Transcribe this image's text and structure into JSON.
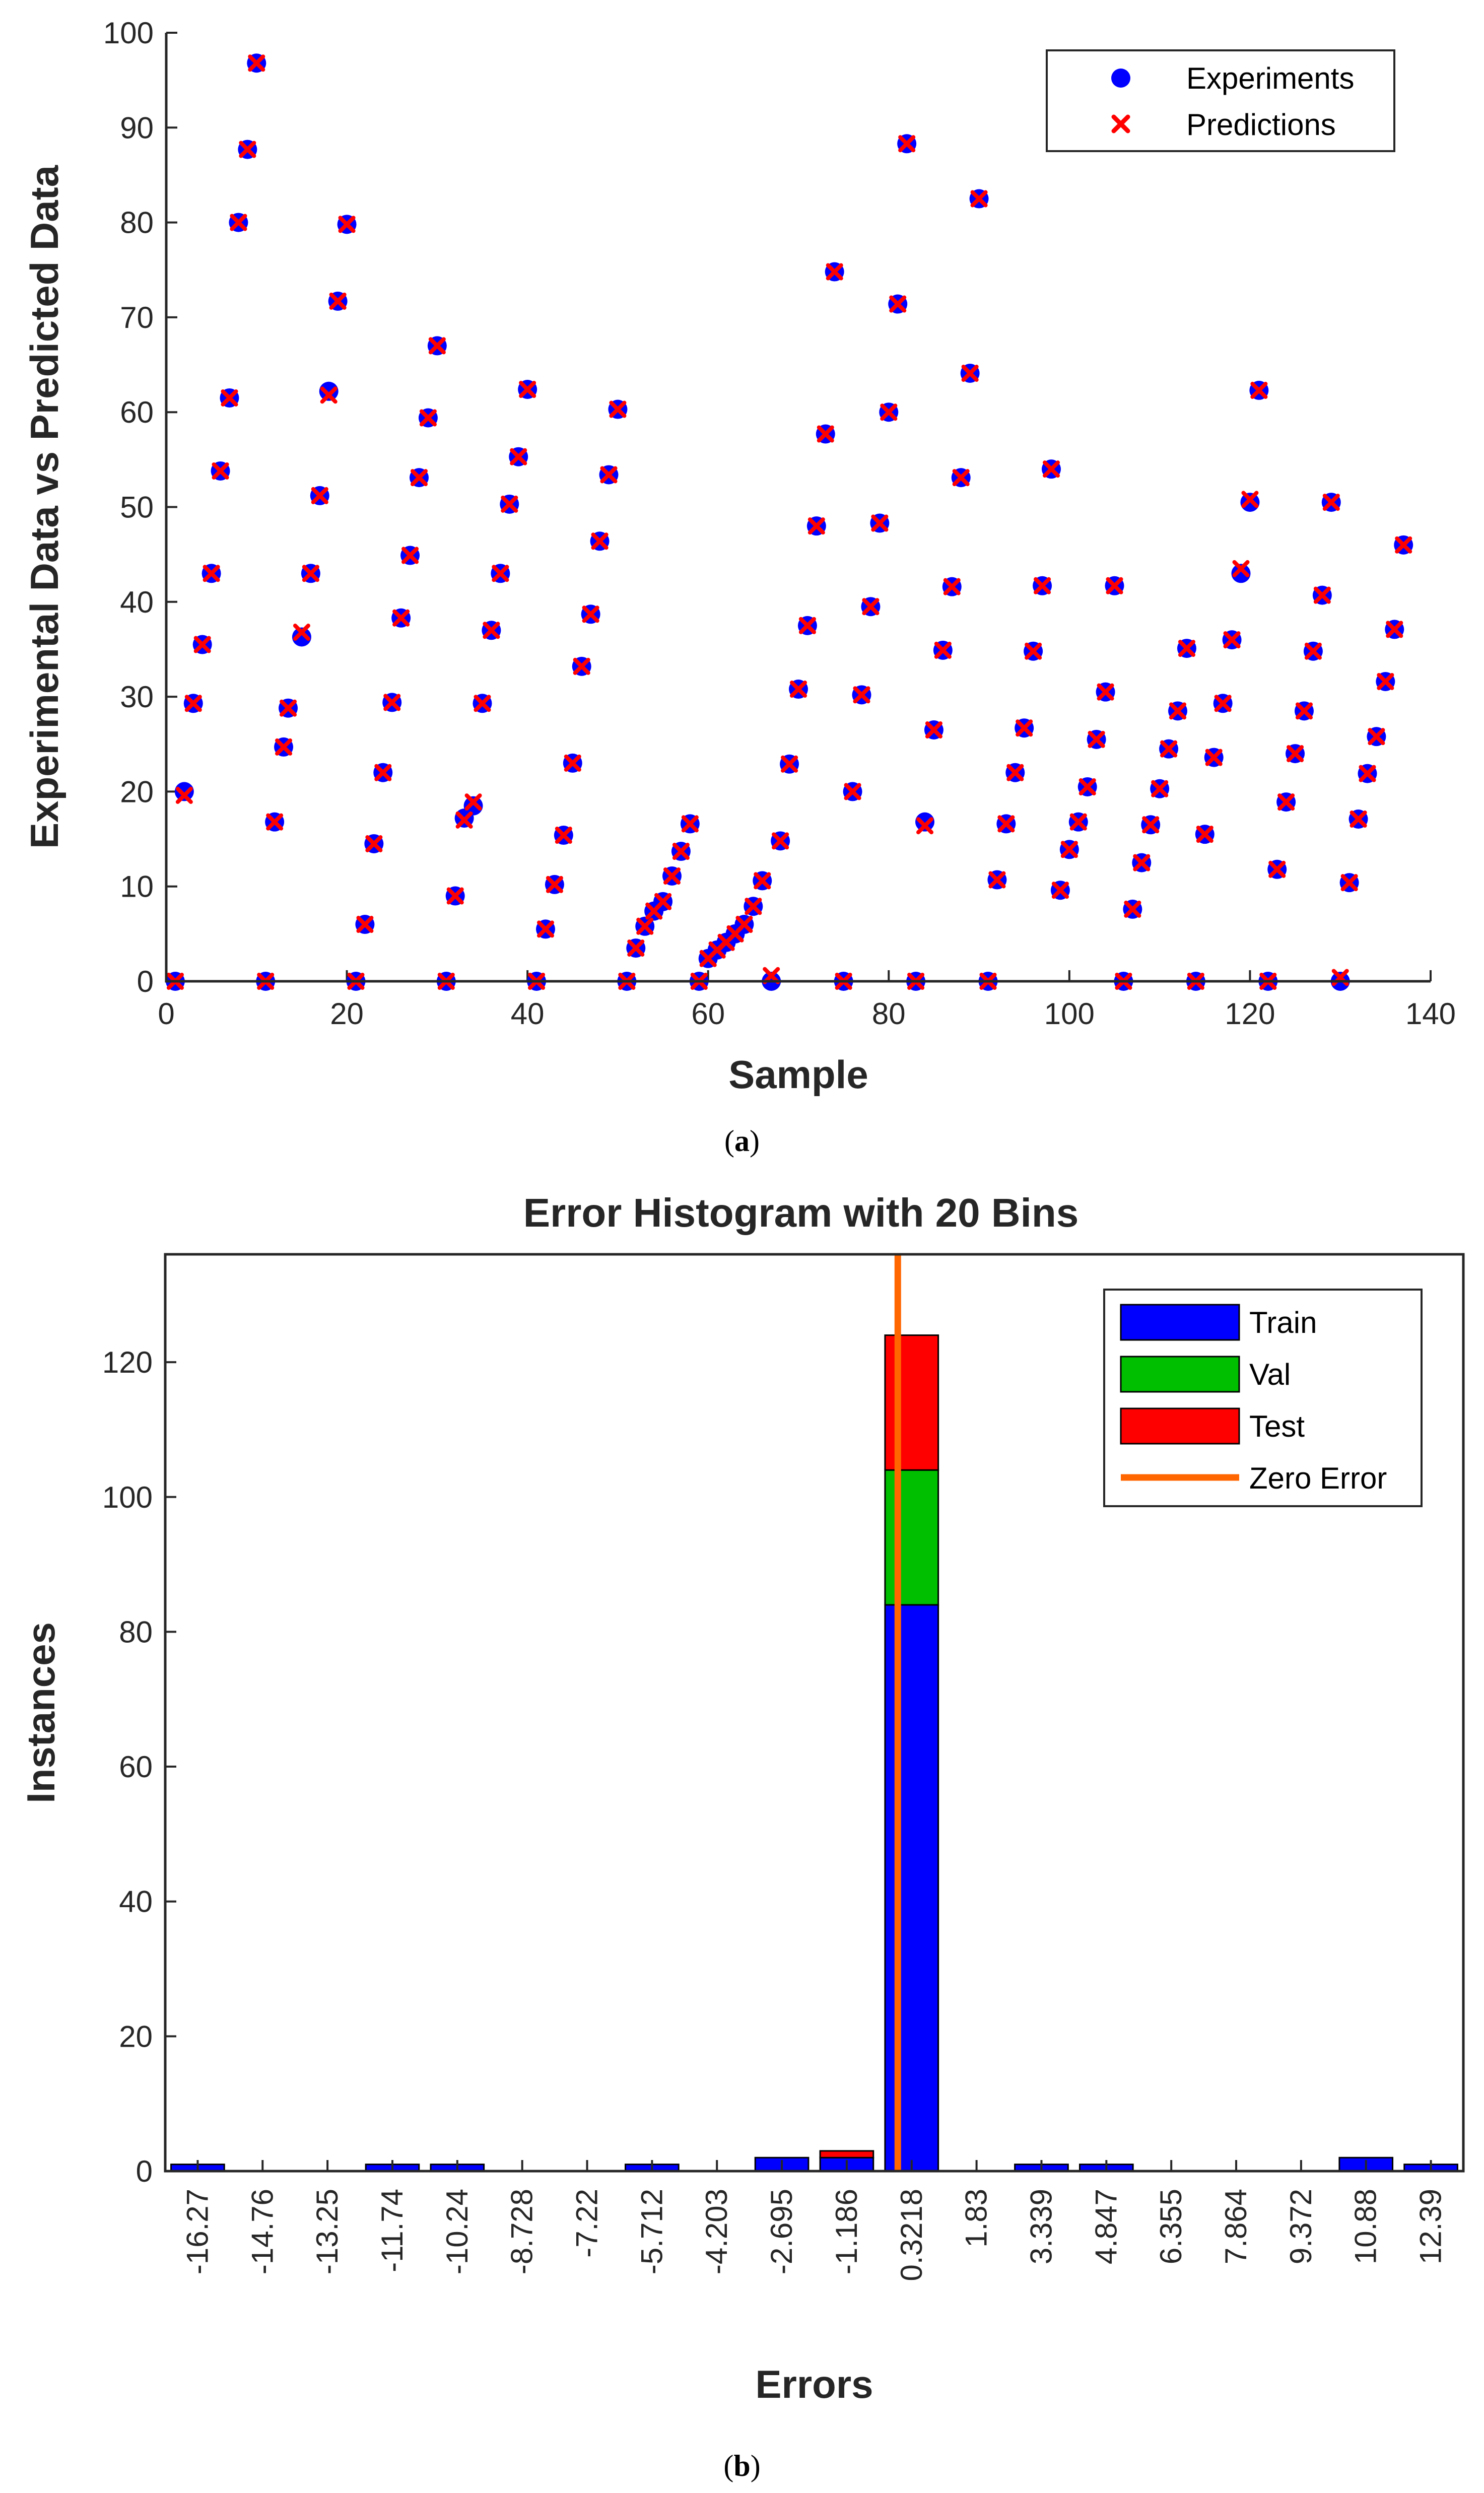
{
  "captions": {
    "a_open": "(",
    "a_letter": "a",
    "a_close": ")",
    "b_open": "(",
    "b_letter": "b",
    "b_close": ")"
  },
  "chart_data": [
    {
      "type": "scatter",
      "title": "",
      "xlabel": "Sample",
      "ylabel": "Experimental Data vs Predicted Data",
      "xlim": [
        0,
        140
      ],
      "ylim": [
        0,
        100
      ],
      "xticks": [
        0,
        20,
        40,
        60,
        80,
        100,
        120,
        140
      ],
      "yticks": [
        0,
        10,
        20,
        30,
        40,
        50,
        60,
        70,
        80,
        90,
        100
      ],
      "grid": false,
      "legend_position": "top-right",
      "colors": {
        "experiments": "#0000ff",
        "predictions": "#ff0000"
      },
      "series": [
        {
          "name": "Experiments",
          "marker": "circle",
          "x": [
            1,
            2,
            3,
            4,
            5,
            6,
            7,
            8,
            9,
            10,
            11,
            12,
            13,
            13.5,
            15,
            16,
            17,
            18,
            19,
            20,
            21,
            22,
            23,
            24,
            25,
            26,
            27,
            28,
            29,
            30,
            31,
            32,
            33,
            34,
            35,
            36,
            37,
            38,
            39,
            40,
            41,
            42,
            43,
            44,
            45,
            46,
            47,
            48,
            49,
            50,
            51,
            52,
            53,
            54,
            55,
            56,
            57,
            58,
            59,
            60,
            61,
            62,
            63,
            64,
            65,
            66,
            67,
            68,
            69,
            70,
            71,
            72,
            73,
            74,
            75,
            76,
            77,
            78,
            79,
            80,
            81,
            82,
            83,
            84,
            85,
            86,
            87,
            88,
            89,
            90,
            91,
            92,
            93,
            94,
            95,
            96,
            97,
            98,
            99,
            100,
            101,
            102,
            103,
            104,
            105,
            106,
            107,
            108,
            109,
            110,
            111,
            112,
            113,
            114,
            115,
            116,
            117,
            118,
            119,
            120,
            121,
            122,
            123,
            124,
            125,
            126,
            127,
            128,
            129,
            130,
            131,
            132,
            133,
            134,
            135,
            136,
            137
          ],
          "y": [
            0,
            20,
            29.3,
            35.5,
            43,
            53.8,
            61.5,
            80,
            87.7,
            96.8,
            0,
            16.8,
            24.7,
            28.8,
            36.3,
            43,
            51.2,
            62.2,
            71.7,
            79.8,
            0,
            6,
            14.5,
            22,
            29.4,
            38.3,
            44.9,
            53.1,
            59.4,
            67,
            0,
            9,
            17.2,
            18.5,
            29.3,
            37,
            43,
            50.3,
            55.3,
            62.4,
            0,
            5.5,
            10.2,
            15.4,
            23,
            33.2,
            38.7,
            46.4,
            53.4,
            60.3,
            0,
            3.5,
            5.8,
            7.4,
            8.4,
            11.1,
            13.7,
            16.6,
            0,
            2.4,
            3.3,
            4.1,
            5,
            6,
            7.9,
            10.6,
            0,
            14.8,
            22.9,
            30.8,
            37.5,
            48,
            57.7,
            74.8,
            0,
            20,
            30.2,
            39.5,
            48.3,
            60,
            71.4,
            88.3,
            0,
            16.8,
            26.5,
            34.9,
            41.6,
            53.1,
            64.1,
            82.5,
            0,
            10.7,
            16.6,
            22,
            26.7,
            34.8,
            41.7,
            54,
            9.6,
            13.9,
            16.8,
            20.5,
            25.5,
            30.5,
            41.7,
            0,
            7.6,
            12.5,
            16.5,
            20.3,
            24.5,
            28.5,
            35.1,
            0,
            15.5,
            23.6,
            29.3,
            36,
            43,
            50.5,
            62.3,
            0,
            11.8,
            18.9,
            24,
            28.5,
            34.8,
            40.7,
            50.5,
            0,
            10.4,
            17.1,
            21.9,
            25.8,
            31.6,
            37.1,
            46
          ]
        },
        {
          "name": "Predictions",
          "marker": "x",
          "x": [
            1,
            2,
            3,
            4,
            5,
            6,
            7,
            8,
            9,
            10,
            11,
            12,
            13,
            13.5,
            15,
            16,
            17,
            18,
            19,
            20,
            21,
            22,
            23,
            24,
            25,
            26,
            27,
            28,
            29,
            30,
            31,
            32,
            33,
            34,
            35,
            36,
            37,
            38,
            39,
            40,
            41,
            42,
            43,
            44,
            45,
            46,
            47,
            48,
            49,
            50,
            51,
            52,
            53,
            54,
            55,
            56,
            57,
            58,
            59,
            60,
            61,
            62,
            63,
            64,
            65,
            66,
            67,
            68,
            69,
            70,
            71,
            72,
            73,
            74,
            75,
            76,
            77,
            78,
            79,
            80,
            81,
            82,
            83,
            84,
            85,
            86,
            87,
            88,
            89,
            90,
            91,
            92,
            93,
            94,
            95,
            96,
            97,
            98,
            99,
            100,
            101,
            102,
            103,
            104,
            105,
            106,
            107,
            108,
            109,
            110,
            111,
            112,
            113,
            114,
            115,
            116,
            117,
            118,
            119,
            120,
            121,
            122,
            123,
            124,
            125,
            126,
            127,
            128,
            129,
            130,
            131,
            132,
            133,
            134,
            135,
            136,
            137
          ],
          "y": [
            0,
            19.6,
            29.3,
            35.5,
            43,
            53.8,
            61.5,
            80,
            87.7,
            96.8,
            0,
            16.8,
            24.7,
            28.8,
            36.8,
            43,
            51.2,
            61.8,
            71.7,
            79.8,
            0,
            6,
            14.5,
            22,
            29.4,
            38.3,
            44.9,
            53.1,
            59.4,
            67,
            0,
            9,
            17,
            18.9,
            29.3,
            37,
            43,
            50.3,
            55.3,
            62.4,
            0,
            5.5,
            10.2,
            15.4,
            23,
            33.2,
            38.7,
            46.4,
            53.4,
            60.3,
            0,
            3.5,
            5.8,
            7.4,
            8.4,
            11.1,
            13.7,
            16.6,
            0,
            2.4,
            3.3,
            4.1,
            5,
            6,
            7.9,
            10.6,
            0.6,
            14.8,
            22.9,
            30.8,
            37.5,
            48,
            57.7,
            74.8,
            0,
            20,
            30.2,
            39.5,
            48.3,
            60,
            71.4,
            88.3,
            0,
            16.4,
            26.5,
            34.9,
            41.6,
            53.1,
            64.1,
            82.5,
            0,
            10.7,
            16.6,
            22,
            26.7,
            34.8,
            41.7,
            54,
            9.6,
            13.9,
            16.8,
            20.5,
            25.5,
            30.5,
            41.7,
            0,
            7.6,
            12.5,
            16.5,
            20.3,
            24.5,
            28.5,
            35.1,
            0,
            15.5,
            23.6,
            29.3,
            36,
            43.5,
            50.8,
            62.3,
            0,
            11.8,
            18.9,
            24,
            28.5,
            34.8,
            40.7,
            50.5,
            0.4,
            10.4,
            17.1,
            21.9,
            25.8,
            31.6,
            37.1,
            46
          ]
        }
      ]
    },
    {
      "type": "bar",
      "stacked": true,
      "title": "Error Histogram with 20 Bins",
      "xlabel": "Errors",
      "ylabel": "Instances",
      "ylim": [
        0,
        136
      ],
      "yticks": [
        0,
        20,
        40,
        60,
        80,
        100,
        120
      ],
      "grid": false,
      "legend_position": "top-right",
      "categories": [
        "-16.27",
        "-14.76",
        "-13.25",
        "-11.74",
        "-10.24",
        "-8.728",
        "-7.22",
        "-5.712",
        "-4.203",
        "-2.695",
        "-1.186",
        "0.3218",
        "1.83",
        "3.339",
        "4.847",
        "6.355",
        "7.864",
        "9.372",
        "10.88",
        "12.39"
      ],
      "series": [
        {
          "name": "Train",
          "color": "#0000ff",
          "values": [
            1,
            0,
            0,
            1,
            1,
            0,
            0,
            1,
            0,
            2,
            2,
            84,
            0,
            1,
            1,
            0,
            0,
            0,
            2,
            1
          ]
        },
        {
          "name": "Val",
          "color": "#00bf00",
          "values": [
            0,
            0,
            0,
            0,
            0,
            0,
            0,
            0,
            0,
            0,
            0,
            20,
            0,
            0,
            0,
            0,
            0,
            0,
            0,
            0
          ]
        },
        {
          "name": "Test",
          "color": "#ff0000",
          "values": [
            0,
            0,
            0,
            0,
            0,
            0,
            0,
            0,
            0,
            0,
            1,
            20,
            0,
            0,
            0,
            0,
            0,
            0,
            0,
            0
          ]
        }
      ],
      "reference_line": {
        "name": "Zero Error",
        "color": "#ff6600",
        "x": 0
      }
    }
  ]
}
